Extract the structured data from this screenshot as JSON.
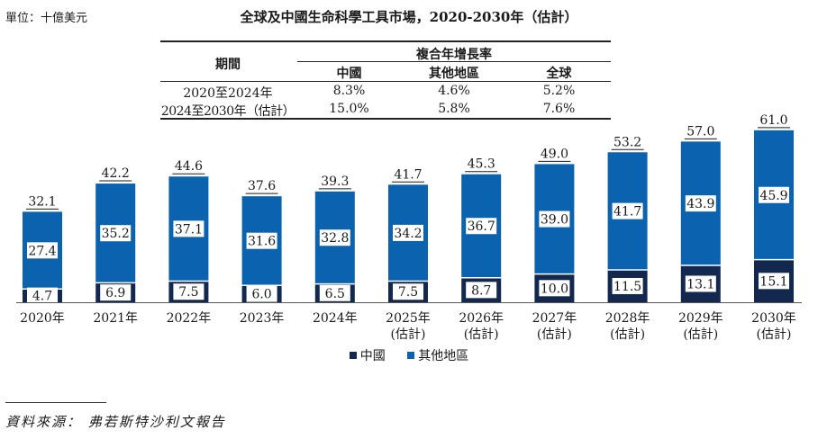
{
  "unit_label": "單位：十億美元",
  "chart_data": {
    "type": "bar",
    "stacked": true,
    "title": "全球及中國生命科學工具市場，2020-2030年（估計）",
    "categories": [
      "2020年",
      "2021年",
      "2022年",
      "2023年",
      "2024年",
      "2025年",
      "2026年",
      "2027年",
      "2028年",
      "2029年",
      "2030年"
    ],
    "category_sublabels": [
      "",
      "",
      "",
      "",
      "",
      "(估計)",
      "(估計)",
      "(估計)",
      "(估計)",
      "(估計)",
      "(估計)"
    ],
    "series": [
      {
        "name": "中國",
        "color": "#13284f",
        "values": [
          4.7,
          6.9,
          7.5,
          6.0,
          6.5,
          7.5,
          8.7,
          10.0,
          11.5,
          13.1,
          15.1
        ]
      },
      {
        "name": "其他地區",
        "color": "#0b63b0",
        "values": [
          27.4,
          35.2,
          37.1,
          31.6,
          32.8,
          34.2,
          36.7,
          39.0,
          41.7,
          43.9,
          45.9
        ]
      }
    ],
    "totals": [
      "32.1",
      "42.2",
      "44.6",
      "37.6",
      "39.3",
      "41.7",
      "45.3",
      "49.0",
      "53.2",
      "57.0",
      "61.0"
    ],
    "ylim": [
      0,
      61
    ],
    "legend_position": "bottom-center",
    "grid": false
  },
  "cagr_table": {
    "period_header": "期間",
    "cagr_header": "複合年增長率",
    "col_china": "中國",
    "col_other": "其他地區",
    "col_global": "全球",
    "rows": [
      {
        "period": "2020至2024年",
        "china": "8.3%",
        "other": "4.6%",
        "global": "5.2%"
      },
      {
        "period": "2024至2030年（估計）",
        "china": "15.0%",
        "other": "5.8%",
        "global": "7.6%"
      }
    ]
  },
  "source": "資料來源：  弗若斯特沙利文報告"
}
